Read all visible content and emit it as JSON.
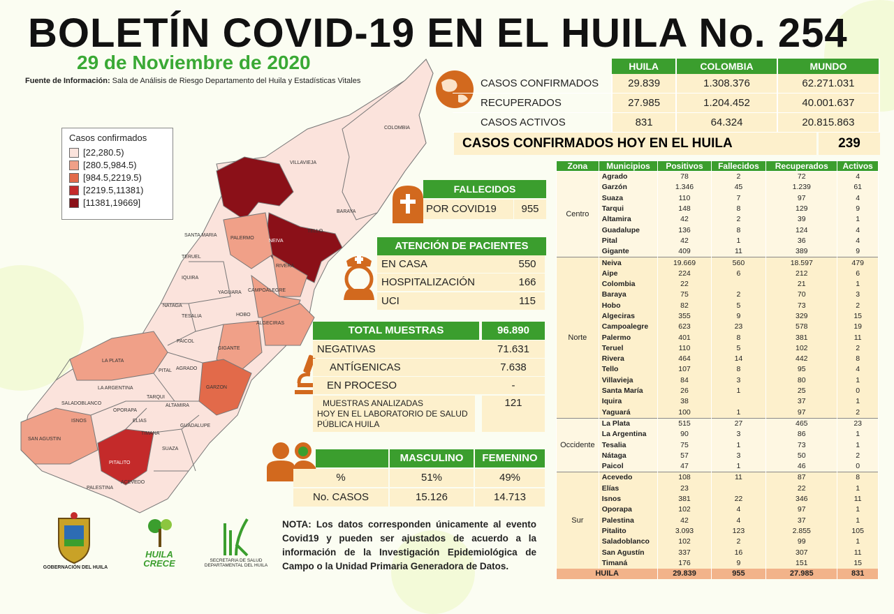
{
  "header": {
    "title": "BOLETÍN COVID-19 EN EL HUILA No. 254",
    "date": "29 de Noviembre de 2020",
    "source_label": "Fuente de Información:",
    "source_text": " Sala de Análisis de Riesgo Departamento del Huila y Estadísticas Vitales"
  },
  "legend": {
    "title": "Casos confirmados",
    "items": [
      {
        "label": "[22,280.5)",
        "color": "#fbe3dc"
      },
      {
        "label": "[280.5,984.5)",
        "color": "#f0a088"
      },
      {
        "label": "[984.5,2219.5)",
        "color": "#e26a4a"
      },
      {
        "label": "[2219.5,11381)",
        "color": "#c42a2a"
      },
      {
        "label": "[11381,19669]",
        "color": "#8b1018"
      }
    ]
  },
  "map_labels": [
    "COLOMBIA",
    "VILLAVIEJA",
    "BARAYA",
    "TELLO",
    "NEIVA",
    "SANTA MARIA",
    "PALERMO",
    "RIVERA",
    "TERUEL",
    "IQUIRA",
    "YAGUARA",
    "CAMPOALEGRE",
    "NATAGA",
    "TESALIA",
    "HOBO",
    "ALGECIRAS",
    "PAICOL",
    "GIGANTE",
    "LA PLATA",
    "PITAL",
    "AGRADO",
    "LA ARGENTINA",
    "GARZON",
    "TARQUI",
    "SALADOBLANCO",
    "OPORAPA",
    "ALTAMIRA",
    "ISNOS",
    "ELIAS",
    "GUADALUPE",
    "TIMANA",
    "SAN AGUSTIN",
    "SUAZA",
    "PITALITO",
    "ACEVEDO",
    "PALESTINA"
  ],
  "world": {
    "headers": [
      "HUILA",
      "COLOMBIA",
      "MUNDO"
    ],
    "rows": [
      {
        "label": "CASOS CONFIRMADOS",
        "values": [
          "29.839",
          "1.308.376",
          "62.271.031"
        ]
      },
      {
        "label": "RECUPERADOS",
        "values": [
          "27.985",
          "1.204.452",
          "40.001.637"
        ]
      },
      {
        "label": "CASOS ACTIVOS",
        "values": [
          "831",
          "64.324",
          "20.815.863"
        ]
      }
    ]
  },
  "hoy": {
    "label": "CASOS CONFIRMADOS  HOY EN EL HUILA",
    "value": "239"
  },
  "fallecidos": {
    "title": "FALLECIDOS",
    "label": "POR COVID19",
    "value": "955"
  },
  "atencion": {
    "title": "ATENCIÓN DE PACIENTES",
    "rows": [
      {
        "label": "EN CASA",
        "value": "550"
      },
      {
        "label": "HOSPITALIZACIÓN",
        "value": "166"
      },
      {
        "label": "UCI",
        "value": "115"
      }
    ]
  },
  "muestras": {
    "title": "TOTAL MUESTRAS",
    "total": "96.890",
    "rows": [
      {
        "label": "NEGATIVAS",
        "value": "71.631"
      },
      {
        "label": "ANTÍGENICAS",
        "value": "7.638"
      },
      {
        "label": "EN PROCESO",
        "value": "-"
      }
    ],
    "lab_label_1": "MUESTRAS ANALIZADAS",
    "lab_label_2": "HOY EN EL LABORATORIO DE SALUD",
    "lab_label_3": "PÚBLICA HUILA",
    "lab_value": "121"
  },
  "genero": {
    "headers": [
      "MASCULINO",
      "FEMENINO"
    ],
    "rows": [
      {
        "label": "%",
        "values": [
          "51%",
          "49%"
        ]
      },
      {
        "label": "No. CASOS",
        "values": [
          "15.126",
          "14.713"
        ]
      }
    ]
  },
  "zones_table": {
    "headers": [
      "Zona",
      "Municipios",
      "Positivos",
      "Fallecidos",
      "Recuperados",
      "Activos"
    ],
    "zones": [
      {
        "name": "Centro",
        "rows": [
          [
            "Agrado",
            "78",
            "2",
            "72",
            "4"
          ],
          [
            "Garzón",
            "1.346",
            "45",
            "1.239",
            "61"
          ],
          [
            "Suaza",
            "110",
            "7",
            "97",
            "4"
          ],
          [
            "Tarqui",
            "148",
            "8",
            "129",
            "9"
          ],
          [
            "Altamira",
            "42",
            "2",
            "39",
            "1"
          ],
          [
            "Guadalupe",
            "136",
            "8",
            "124",
            "4"
          ],
          [
            "Pital",
            "42",
            "1",
            "36",
            "4"
          ],
          [
            "Gigante",
            "409",
            "11",
            "389",
            "9"
          ]
        ]
      },
      {
        "name": "Norte",
        "rows": [
          [
            "Neiva",
            "19.669",
            "560",
            "18.597",
            "479"
          ],
          [
            "Aipe",
            "224",
            "6",
            "212",
            "6"
          ],
          [
            "Colombia",
            "22",
            "",
            "21",
            "1"
          ],
          [
            "Baraya",
            "75",
            "2",
            "70",
            "3"
          ],
          [
            "Hobo",
            "82",
            "5",
            "73",
            "2"
          ],
          [
            "Algeciras",
            "355",
            "9",
            "329",
            "15"
          ],
          [
            "Campoalegre",
            "623",
            "23",
            "578",
            "19"
          ],
          [
            "Palermo",
            "401",
            "8",
            "381",
            "11"
          ],
          [
            "Teruel",
            "110",
            "5",
            "102",
            "2"
          ],
          [
            "Rivera",
            "464",
            "14",
            "442",
            "8"
          ],
          [
            "Tello",
            "107",
            "8",
            "95",
            "4"
          ],
          [
            "Villavieja",
            "84",
            "3",
            "80",
            "1"
          ],
          [
            "Santa María",
            "26",
            "1",
            "25",
            "0"
          ],
          [
            "Iquira",
            "38",
            "",
            "37",
            "1"
          ],
          [
            "Yaguará",
            "100",
            "1",
            "97",
            "2"
          ]
        ]
      },
      {
        "name": "Occidente",
        "rows": [
          [
            "La Plata",
            "515",
            "27",
            "465",
            "23"
          ],
          [
            "La Argentina",
            "90",
            "3",
            "86",
            "1"
          ],
          [
            "Tesalia",
            "75",
            "1",
            "73",
            "1"
          ],
          [
            "Nátaga",
            "57",
            "3",
            "50",
            "2"
          ],
          [
            "Paicol",
            "47",
            "1",
            "46",
            "0"
          ]
        ]
      },
      {
        "name": "Sur",
        "rows": [
          [
            "Acevedo",
            "108",
            "11",
            "87",
            "8"
          ],
          [
            "Elías",
            "23",
            "",
            "22",
            "1"
          ],
          [
            "Isnos",
            "381",
            "22",
            "346",
            "11"
          ],
          [
            "Oporapa",
            "102",
            "4",
            "97",
            "1"
          ],
          [
            "Palestina",
            "42",
            "4",
            "37",
            "1"
          ],
          [
            "Pitalito",
            "3.093",
            "123",
            "2.855",
            "105"
          ],
          [
            "Saladoblanco",
            "102",
            "2",
            "99",
            "1"
          ],
          [
            "San Agustín",
            "337",
            "16",
            "307",
            "11"
          ],
          [
            "Timaná",
            "176",
            "9",
            "151",
            "15"
          ]
        ]
      }
    ],
    "total": [
      "HUILA",
      "29.839",
      "955",
      "27.985",
      "831"
    ]
  },
  "nota": "NOTA: Los datos corresponden únicamente al evento Covid19 y pueden ser ajustados de acuerdo a la información de la Investigación Epidemiológica de Campo o la Unidad Primaria Generadora de Datos.",
  "logos": {
    "gobernacion": "GOBERNACIÓN DEL HUILA",
    "huila_crece_1": "HUILA",
    "huila_crece_2": "CRECE",
    "secretaria_1": "SECRETARIA DE SALUD",
    "secretaria_2": "DEPARTAMENTAL DEL HUILA"
  }
}
